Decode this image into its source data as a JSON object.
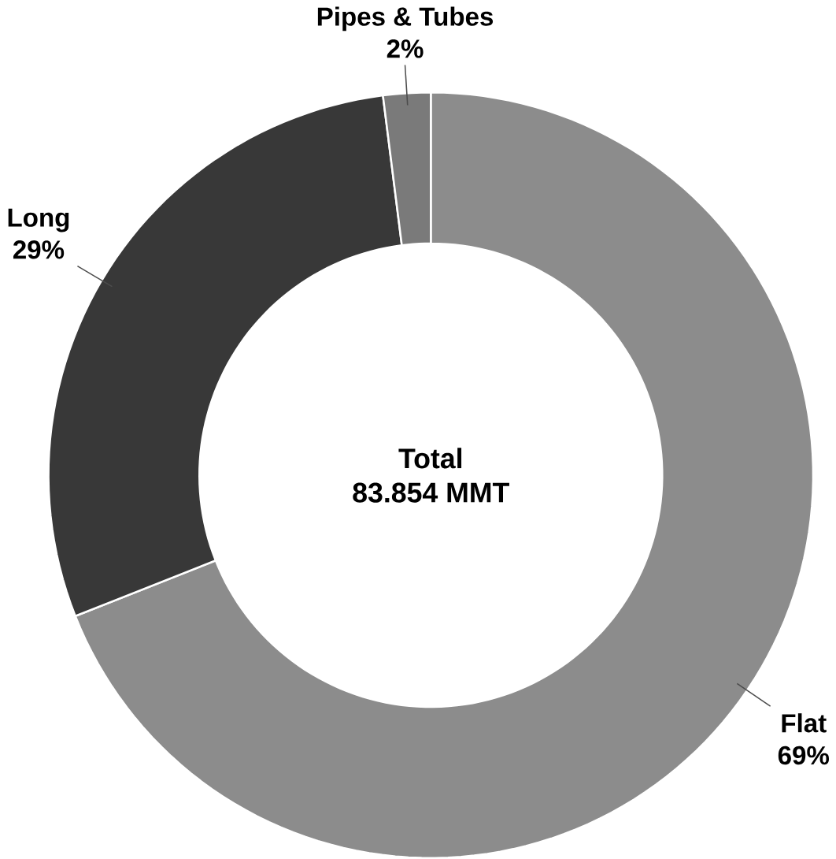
{
  "chart_data": {
    "type": "donut",
    "categories": [
      "Flat",
      "Long",
      "Pipes & Tubes"
    ],
    "values": [
      69,
      29,
      2
    ],
    "value_labels": [
      "69%",
      "29%",
      "2%"
    ],
    "colors": [
      "#8c8c8c",
      "#383838",
      "#7a7a7a"
    ],
    "annotations": [
      "Total",
      "83.854 MMT"
    ]
  }
}
